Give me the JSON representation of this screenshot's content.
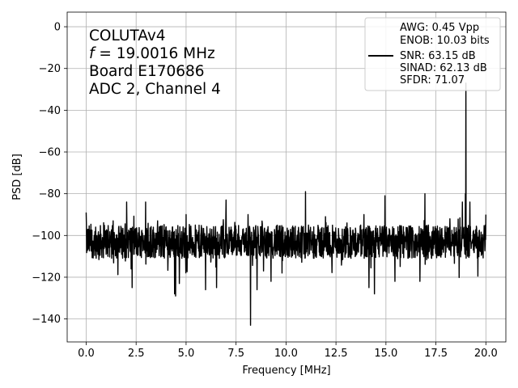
{
  "chart_data": {
    "type": "line",
    "xlabel": "Frequency [MHz]",
    "ylabel": "PSD [dB]",
    "xlim": [
      -0.95,
      21.0
    ],
    "ylim": [
      -151,
      7
    ],
    "x_ticks": [
      0.0,
      2.5,
      5.0,
      7.5,
      10.0,
      12.5,
      15.0,
      17.5,
      20.0
    ],
    "x_tick_labels": [
      "0.0",
      "2.5",
      "5.0",
      "7.5",
      "10.0",
      "12.5",
      "15.0",
      "17.5",
      "20.0"
    ],
    "y_ticks": [
      0,
      -20,
      -40,
      -60,
      -80,
      -100,
      -120,
      -140
    ],
    "y_tick_labels": [
      "0",
      "−20",
      "−40",
      "−60",
      "−80",
      "−100",
      "−120",
      "−140"
    ],
    "grid": true,
    "line_color": "#000000",
    "annotation_lines": [
      "COLUTAv4",
      "f = 19.0016 MHz",
      "Board E170686",
      "ADC 2, Channel 4"
    ],
    "annotation_freq": {
      "italic_symbol": "f",
      "text": " = 19.0016 MHz"
    },
    "legend": {
      "location": "top-right",
      "lines": [
        "AWG: 0.45 Vpp",
        "ENOB: 10.03 bits",
        "SNR: 63.15 dB",
        "SINAD: 62.13 dB",
        "SFDR: 71.07"
      ]
    },
    "series": [
      {
        "noise_floor_db": -103,
        "noise_spread_db": 10,
        "x_range": [
          0.0,
          20.0
        ],
        "spikes": [
          {
            "x": 0.0,
            "y": -89
          },
          {
            "x": 0.48,
            "y": -96
          },
          {
            "x": 1.35,
            "y": -93
          },
          {
            "x": 2.03,
            "y": -84
          },
          {
            "x": 2.25,
            "y": -116
          },
          {
            "x": 2.3,
            "y": -125
          },
          {
            "x": 2.98,
            "y": -84
          },
          {
            "x": 3.58,
            "y": -93
          },
          {
            "x": 4.43,
            "y": -128
          },
          {
            "x": 4.47,
            "y": -129
          },
          {
            "x": 4.66,
            "y": -123
          },
          {
            "x": 5.0,
            "y": -90
          },
          {
            "x": 5.97,
            "y": -126
          },
          {
            "x": 6.53,
            "y": -125
          },
          {
            "x": 7.0,
            "y": -83
          },
          {
            "x": 8.1,
            "y": -90
          },
          {
            "x": 8.22,
            "y": -143
          },
          {
            "x": 8.55,
            "y": -126
          },
          {
            "x": 8.87,
            "y": -117
          },
          {
            "x": 9.25,
            "y": -122
          },
          {
            "x": 9.8,
            "y": -118
          },
          {
            "x": 10.97,
            "y": -79
          },
          {
            "x": 11.98,
            "y": -91
          },
          {
            "x": 13.05,
            "y": -94
          },
          {
            "x": 13.9,
            "y": -90
          },
          {
            "x": 14.15,
            "y": -125
          },
          {
            "x": 14.43,
            "y": -128
          },
          {
            "x": 14.95,
            "y": -81
          },
          {
            "x": 15.45,
            "y": -122
          },
          {
            "x": 16.7,
            "y": -122
          },
          {
            "x": 16.95,
            "y": -80
          },
          {
            "x": 18.2,
            "y": -92
          },
          {
            "x": 18.82,
            "y": -84
          },
          {
            "x": 18.97,
            "y": -80
          },
          {
            "x": 19.0016,
            "y": -27
          },
          {
            "x": 19.2,
            "y": -84
          },
          {
            "x": 20.0,
            "y": -90
          }
        ]
      }
    ]
  }
}
